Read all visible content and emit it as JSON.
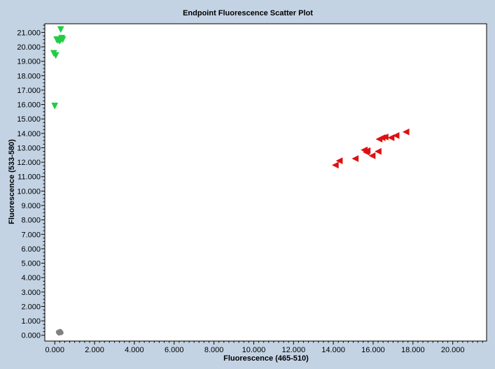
{
  "chart_data": {
    "type": "scatter",
    "title": "Endpoint Fluorescence Scatter Plot",
    "xlabel": "Fluorescence (465-510)",
    "ylabel": "Fluorescence (533-580)",
    "xlim": [
      -0.5,
      21.7
    ],
    "ylim": [
      -0.4,
      21.6
    ],
    "x_ticks": [
      0,
      2,
      4,
      6,
      8,
      10,
      12,
      14,
      16,
      18,
      20
    ],
    "x_tick_labels": [
      "0.000",
      "2.000",
      "4.000",
      "6.000",
      "8.000",
      "10.000",
      "12.000",
      "14.000",
      "16.000",
      "18.000",
      "20.000"
    ],
    "y_ticks": [
      0,
      1,
      2,
      3,
      4,
      5,
      6,
      7,
      8,
      9,
      10,
      11,
      12,
      13,
      14,
      15,
      16,
      17,
      18,
      19,
      20,
      21
    ],
    "y_tick_labels": [
      "0.000",
      "1.000",
      "2.000",
      "3.000",
      "4.000",
      "5.000",
      "6.000",
      "7.000",
      "8.000",
      "9.000",
      "10.000",
      "11.000",
      "12.000",
      "13.000",
      "14.000",
      "15.000",
      "16.000",
      "17.000",
      "18.000",
      "19.000",
      "20.000",
      "21.000"
    ],
    "grid": false,
    "series": [
      {
        "marker": "triangle-down",
        "color": "#22cc44",
        "points": [
          [
            0.3,
            21.2
          ],
          [
            0.1,
            20.5
          ],
          [
            0.2,
            20.5
          ],
          [
            0.3,
            20.5
          ],
          [
            0.35,
            20.6
          ],
          [
            0.25,
            20.4
          ],
          [
            0.4,
            20.5
          ],
          [
            0.15,
            20.45
          ],
          [
            -0.05,
            19.55
          ],
          [
            0.05,
            19.4
          ],
          [
            0.0,
            15.9
          ]
        ]
      },
      {
        "marker": "triangle-left",
        "color": "#dd1111",
        "points": [
          [
            14.1,
            11.8
          ],
          [
            14.3,
            12.1
          ],
          [
            15.1,
            12.25
          ],
          [
            15.55,
            12.85
          ],
          [
            15.7,
            12.8
          ],
          [
            15.65,
            12.7
          ],
          [
            15.95,
            12.45
          ],
          [
            16.25,
            12.75
          ],
          [
            16.3,
            13.6
          ],
          [
            16.45,
            13.7
          ],
          [
            16.6,
            13.75
          ],
          [
            16.9,
            13.7
          ],
          [
            17.15,
            13.85
          ],
          [
            17.65,
            14.1
          ]
        ]
      },
      {
        "marker": "circle",
        "color": "#808080",
        "points": [
          [
            0.2,
            0.2
          ],
          [
            0.25,
            0.25
          ],
          [
            0.3,
            0.2
          ],
          [
            0.22,
            0.15
          ],
          [
            0.28,
            0.22
          ],
          [
            0.18,
            0.22
          ],
          [
            0.32,
            0.18
          ],
          [
            0.27,
            0.27
          ],
          [
            0.24,
            0.18
          ]
        ]
      }
    ]
  }
}
